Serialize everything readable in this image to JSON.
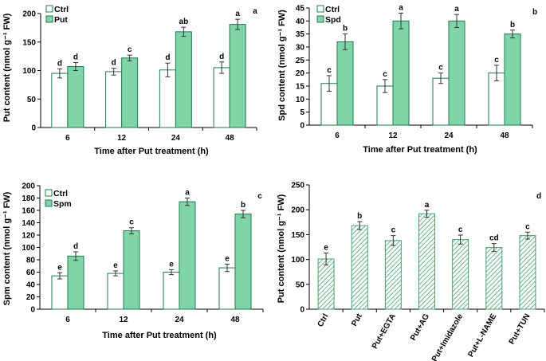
{
  "colors": {
    "treated_fill": "#7fd4a8",
    "treated_stroke": "#1f7a4d",
    "ctrl_fill": "#ffffff",
    "ctrl_stroke": "#1f7a4d",
    "hatch_line": "#3fa56c"
  },
  "chart_data": [
    {
      "panel": "a",
      "type": "bar",
      "ylabel": "Put content (nmol g⁻¹ FW)",
      "xlabel": "Time after Put treatment (h)",
      "ylim": [
        0,
        200
      ],
      "yticks": [
        0,
        50,
        100,
        150,
        200
      ],
      "categories": [
        "6",
        "12",
        "24",
        "48"
      ],
      "series": [
        {
          "name": "Ctrl",
          "values": [
            95,
            98,
            101,
            105
          ],
          "errors": [
            8,
            6,
            12,
            10
          ],
          "letters": [
            "d",
            "d",
            "d",
            "d"
          ]
        },
        {
          "name": "Put",
          "values": [
            107,
            122,
            168,
            181
          ],
          "errors": [
            7,
            5,
            8,
            9
          ],
          "letters": [
            "d",
            "c",
            "ab",
            "a"
          ]
        }
      ]
    },
    {
      "panel": "b",
      "type": "bar",
      "ylabel": "Spd content (nmol g⁻¹ FW)",
      "xlabel": "Time after Put treatment (h)",
      "ylim": [
        0,
        45
      ],
      "yticks": [
        0,
        5,
        10,
        15,
        20,
        25,
        30,
        35,
        40,
        45
      ],
      "categories": [
        "6",
        "12",
        "24",
        "48"
      ],
      "series": [
        {
          "name": "Ctrl",
          "values": [
            16,
            15,
            18,
            20
          ],
          "errors": [
            3,
            2.5,
            2,
            3
          ],
          "letters": [
            "c",
            "c",
            "c",
            "c"
          ]
        },
        {
          "name": "Spd",
          "values": [
            32,
            40,
            40,
            35
          ],
          "errors": [
            3,
            3,
            2.5,
            1.5
          ],
          "letters": [
            "b",
            "a",
            "a",
            "b"
          ]
        }
      ]
    },
    {
      "panel": "c",
      "type": "bar",
      "ylabel": "Spm content (nmol g⁻¹ FW)",
      "xlabel": "Time after Put treatment (h)",
      "ylim": [
        0,
        200
      ],
      "yticks": [
        0,
        20,
        40,
        60,
        80,
        100,
        120,
        140,
        160,
        180,
        200
      ],
      "categories": [
        "6",
        "12",
        "24",
        "48"
      ],
      "series": [
        {
          "name": "Ctrl",
          "values": [
            54,
            58,
            60,
            67
          ],
          "errors": [
            5,
            4,
            4,
            6
          ],
          "letters": [
            "e",
            "e",
            "e",
            "e"
          ]
        },
        {
          "name": "Spm",
          "values": [
            86,
            127,
            174,
            154
          ],
          "errors": [
            7,
            5,
            6,
            6
          ],
          "letters": [
            "d",
            "c",
            "a",
            "b"
          ]
        }
      ]
    },
    {
      "panel": "d",
      "type": "bar",
      "ylabel": "Put content (nmol g⁻¹ FW)",
      "xlabel": "",
      "ylim": [
        0,
        250
      ],
      "yticks": [
        0,
        50,
        100,
        150,
        200,
        250
      ],
      "categories": [
        "Ctrl",
        "Put",
        "Put+EGTA",
        "Put+AG",
        "Put+Imidazole",
        "Put+L-NAME",
        "Put+TUN"
      ],
      "series": [
        {
          "name": "Put content",
          "values": [
            101,
            168,
            138,
            192,
            140,
            124,
            148
          ],
          "errors": [
            12,
            8,
            10,
            7,
            9,
            8,
            7
          ],
          "letters": [
            "e",
            "b",
            "c",
            "a",
            "c",
            "cd",
            "c"
          ]
        }
      ]
    }
  ]
}
